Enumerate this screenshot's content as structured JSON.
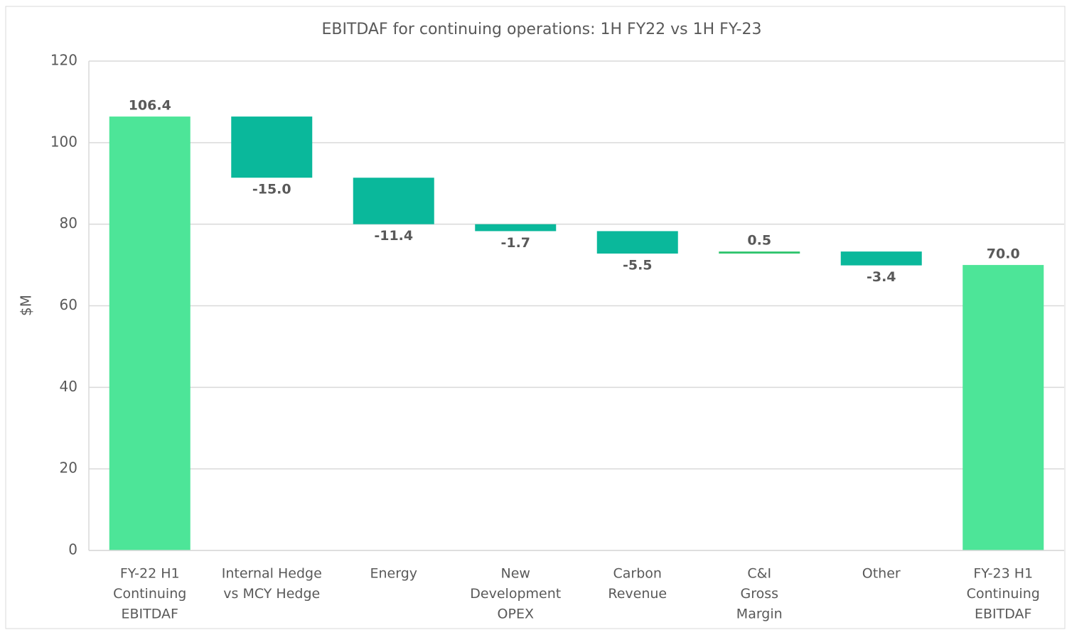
{
  "chart_data": {
    "type": "waterfall",
    "title": "EBITDAF for continuing operations: 1H FY22 vs 1H FY-23",
    "y_label": "$M",
    "categories": [
      [
        "FY-22 H1",
        "Continuing",
        "EBITDAF"
      ],
      [
        "Internal Hedge",
        "vs  MCY Hedge"
      ],
      [
        "Energy"
      ],
      [
        "New",
        "Development",
        "OPEX"
      ],
      [
        "Carbon",
        "Revenue"
      ],
      [
        "C&I",
        "Gross",
        "Margin"
      ],
      [
        "Other"
      ],
      [
        "FY-23 H1",
        "Continuing",
        "EBITDAF"
      ]
    ],
    "measure": [
      "total",
      "delta",
      "delta",
      "delta",
      "delta",
      "delta",
      "delta",
      "total"
    ],
    "values": [
      106.4,
      -15.0,
      -11.4,
      -1.7,
      -5.5,
      0.5,
      -3.4,
      70.0
    ],
    "value_labels": [
      "106.4",
      "-15.0",
      "-11.4",
      "-1.7",
      "-5.5",
      "0.5",
      "-3.4",
      "70.0"
    ],
    "total_color": "#4de598",
    "decrease_color": "#0ab89b",
    "increase_color": "#2fc46e",
    "ylim": [
      0,
      120
    ],
    "yticks": [
      0,
      20,
      40,
      60,
      80,
      100,
      120
    ],
    "grid": true
  }
}
